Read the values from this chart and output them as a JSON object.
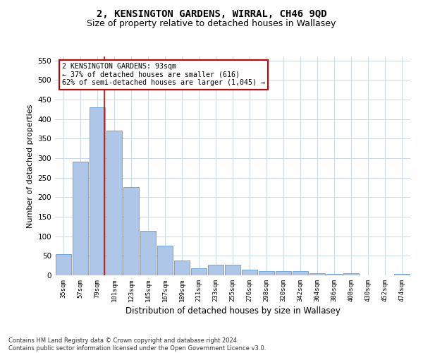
{
  "title": "2, KENSINGTON GARDENS, WIRRAL, CH46 9QD",
  "subtitle": "Size of property relative to detached houses in Wallasey",
  "xlabel": "Distribution of detached houses by size in Wallasey",
  "ylabel": "Number of detached properties",
  "categories": [
    "35sqm",
    "57sqm",
    "79sqm",
    "101sqm",
    "123sqm",
    "145sqm",
    "167sqm",
    "189sqm",
    "211sqm",
    "233sqm",
    "255sqm",
    "276sqm",
    "298sqm",
    "320sqm",
    "342sqm",
    "364sqm",
    "386sqm",
    "408sqm",
    "430sqm",
    "452sqm",
    "474sqm"
  ],
  "values": [
    55,
    290,
    430,
    370,
    225,
    113,
    76,
    38,
    18,
    27,
    27,
    15,
    10,
    10,
    10,
    5,
    3,
    6,
    0,
    0,
    4
  ],
  "bar_color": "#aec6e8",
  "bar_edge_color": "#5a9fd4",
  "grid_color": "#c8d8e8",
  "annotation_text": "2 KENSINGTON GARDENS: 93sqm\n← 37% of detached houses are smaller (616)\n62% of semi-detached houses are larger (1,045) →",
  "vline_color": "#cc0000",
  "vline_x": 2.42,
  "ylim": [
    0,
    560
  ],
  "yticks": [
    0,
    50,
    100,
    150,
    200,
    250,
    300,
    350,
    400,
    450,
    500,
    550
  ],
  "footnote": "Contains HM Land Registry data © Crown copyright and database right 2024.\nContains public sector information licensed under the Open Government Licence v3.0.",
  "bg_color": "#ffffff",
  "title_fontsize": 10,
  "subtitle_fontsize": 9,
  "annotation_box_color": "#ffffff",
  "annotation_box_edge": "#cc0000"
}
